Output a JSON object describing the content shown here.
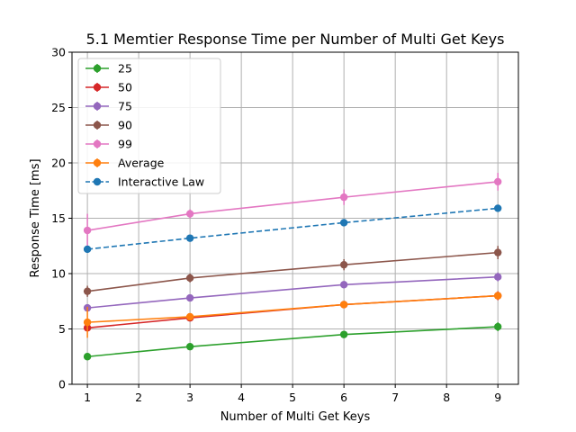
{
  "chart_data": {
    "type": "line",
    "title": "5.1 Memtier Response Time per Number of Multi Get Keys",
    "xlabel": "Number of Multi Get Keys",
    "ylabel": "Response Time [ms]",
    "xlim": [
      0.7,
      9.4
    ],
    "ylim": [
      0,
      30
    ],
    "xticks": [
      1,
      2,
      3,
      4,
      5,
      6,
      7,
      8,
      9
    ],
    "yticks": [
      0,
      5,
      10,
      15,
      20,
      25,
      30
    ],
    "grid": true,
    "legend_position": "top-left",
    "x": [
      1,
      3,
      6,
      9
    ],
    "series": [
      {
        "name": "25",
        "color": "#2ca02c",
        "style": "solid",
        "values": [
          2.5,
          3.4,
          4.5,
          5.2
        ],
        "errors": [
          0.2,
          0.2,
          0.25,
          0.4
        ]
      },
      {
        "name": "50",
        "color": "#d62728",
        "style": "solid",
        "values": [
          5.1,
          6.0,
          7.2,
          8.0
        ],
        "errors": [
          0.3,
          0.3,
          0.3,
          0.4
        ]
      },
      {
        "name": "75",
        "color": "#9467bd",
        "style": "solid",
        "values": [
          6.9,
          7.8,
          9.0,
          9.7
        ],
        "errors": [
          0.3,
          0.3,
          0.3,
          0.4
        ]
      },
      {
        "name": "90",
        "color": "#8c564b",
        "style": "solid",
        "values": [
          8.4,
          9.6,
          10.8,
          11.9
        ],
        "errors": [
          0.5,
          0.4,
          0.5,
          0.6
        ]
      },
      {
        "name": "99",
        "color": "#e377c2",
        "style": "solid",
        "values": [
          13.9,
          15.4,
          16.9,
          18.3
        ],
        "errors": [
          1.5,
          0.4,
          0.7,
          0.8
        ]
      },
      {
        "name": "Average",
        "color": "#ff7f0e",
        "style": "solid",
        "values": [
          5.6,
          6.1,
          7.2,
          8.0
        ],
        "errors": [
          1.4,
          0.3,
          0.3,
          0.3
        ]
      },
      {
        "name": "Interactive Law",
        "color": "#1f77b4",
        "style": "dashed",
        "values": [
          12.2,
          13.2,
          14.6,
          15.9
        ],
        "errors": [
          0,
          0,
          0,
          0
        ]
      }
    ]
  }
}
